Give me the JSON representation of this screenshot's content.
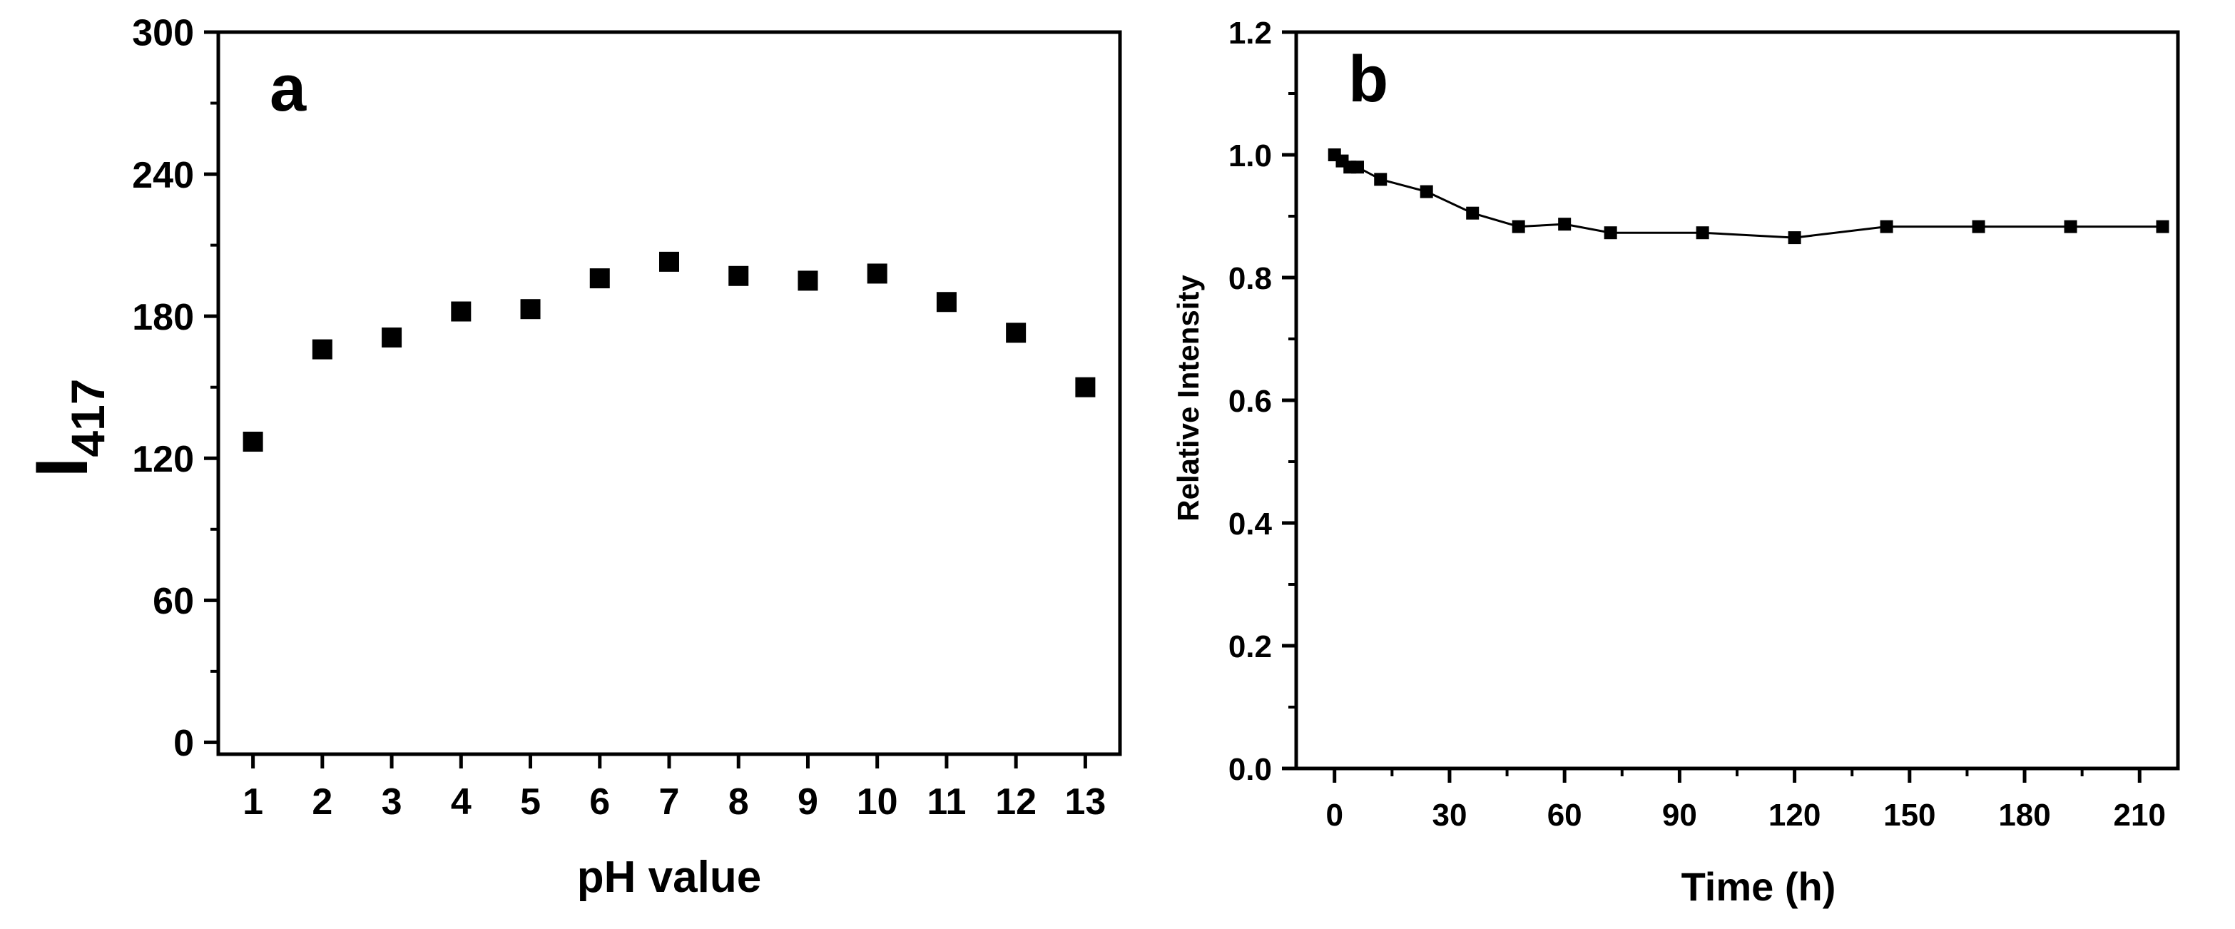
{
  "chart_data": [
    {
      "type": "scatter",
      "panel_label": "a",
      "x": [
        1,
        2,
        3,
        4,
        5,
        6,
        7,
        8,
        9,
        10,
        11,
        12,
        13
      ],
      "y": [
        127,
        166,
        171,
        182,
        183,
        196,
        203,
        197,
        195,
        198,
        186,
        173,
        150
      ],
      "xlabel": "pH value",
      "ylabel_main": "I",
      "ylabel_sub": "417",
      "xticks": [
        "1",
        "2",
        "3",
        "4",
        "5",
        "6",
        "7",
        "8",
        "9",
        "10",
        "11",
        "12",
        "13"
      ],
      "yticks": [
        "0",
        "60",
        "120",
        "180",
        "240",
        "300"
      ],
      "xlim": [
        0.5,
        13.5
      ],
      "ylim": [
        -5,
        300
      ],
      "marker": "square",
      "grid": false
    },
    {
      "type": "line",
      "panel_label": "b",
      "x": [
        0,
        2,
        4,
        6,
        12,
        24,
        36,
        48,
        60,
        72,
        96,
        120,
        144,
        168,
        192,
        216
      ],
      "y": [
        1.0,
        0.99,
        0.98,
        0.98,
        0.96,
        0.94,
        0.905,
        0.883,
        0.887,
        0.873,
        0.873,
        0.865,
        0.883,
        0.883,
        0.883,
        0.883
      ],
      "xlabel": "Time (h)",
      "ylabel": "Relative Intensity",
      "xticks": [
        "0",
        "30",
        "60",
        "90",
        "120",
        "150",
        "180",
        "210"
      ],
      "yticks": [
        "0.0",
        "0.2",
        "0.4",
        "0.6",
        "0.8",
        "1.0",
        "1.2"
      ],
      "xlim": [
        -10,
        220
      ],
      "ylim": [
        0,
        1.2
      ],
      "marker": "square",
      "grid": false
    }
  ]
}
